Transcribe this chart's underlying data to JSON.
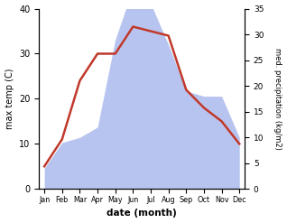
{
  "months": [
    "Jan",
    "Feb",
    "Mar",
    "Apr",
    "May",
    "Jun",
    "Jul",
    "Aug",
    "Sep",
    "Oct",
    "Nov",
    "Dec"
  ],
  "temperature": [
    5,
    11,
    24,
    30,
    30,
    36,
    35,
    34,
    22,
    18,
    15,
    10
  ],
  "precipitation": [
    4,
    9,
    10,
    12,
    29,
    39,
    36,
    28,
    19,
    18,
    18,
    10
  ],
  "temp_color": "#c0392b",
  "precip_fill_color": "#b8c4f0",
  "left_ylabel": "max temp (C)",
  "right_ylabel": "med. precipitation (kg/m2)",
  "xlabel": "date (month)",
  "left_ylim": [
    0,
    40
  ],
  "right_ylim": [
    0,
    35
  ],
  "left_yticks": [
    0,
    10,
    20,
    30,
    40
  ],
  "right_yticks": [
    0,
    5,
    10,
    15,
    20,
    25,
    30,
    35
  ],
  "background_color": "#ffffff"
}
